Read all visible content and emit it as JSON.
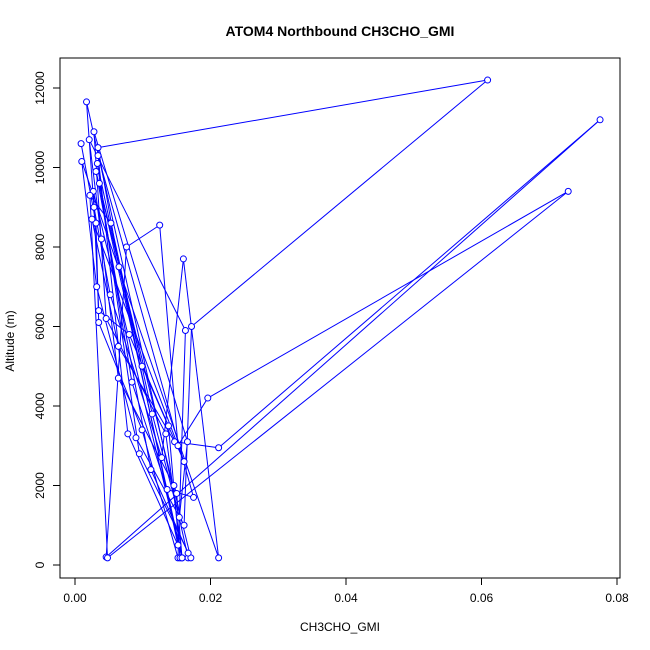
{
  "chart_data": {
    "type": "line",
    "title": "ATOM4 Northbound CH3CHO_GMI",
    "xlabel": "CH3CHO_GMI",
    "ylabel": "Altitude (m)",
    "xlim": [
      0,
      0.08
    ],
    "ylim": [
      0,
      12000
    ],
    "x_ticks": [
      0.0,
      0.02,
      0.04,
      0.06,
      0.08
    ],
    "x_tick_labels": [
      "0.00",
      "0.02",
      "0.04",
      "0.06",
      "0.08"
    ],
    "y_ticks": [
      0,
      2000,
      4000,
      6000,
      8000,
      10000,
      12000
    ],
    "y_tick_labels": [
      "0",
      "2000",
      "4000",
      "6000",
      "8000",
      "10000",
      "12000"
    ],
    "grid": false,
    "series": [
      {
        "color": "#0000ff",
        "marker": "open-circle",
        "x": [
          0.0009,
          0.0031,
          0.0035,
          0.0099,
          0.0152,
          0.0163,
          0.0021,
          0.0039,
          0.0064,
          0.0146,
          0.015,
          0.0158,
          0.0027,
          0.0035,
          0.008,
          0.0138,
          0.0155,
          0.0167,
          0.0017,
          0.0028,
          0.0052,
          0.0128,
          0.016,
          0.0212,
          0.001,
          0.0032,
          0.009,
          0.0161,
          0.0172,
          0.0609,
          0.0034,
          0.0065,
          0.0099,
          0.0161,
          0.0025,
          0.0064,
          0.0147,
          0.0212,
          0.0775,
          0.0046,
          0.0076,
          0.0125,
          0.0152,
          0.0196,
          0.0728,
          0.0048,
          0.0022,
          0.0053,
          0.0114,
          0.0154,
          0.0166,
          0.0028,
          0.0046,
          0.0134,
          0.0158,
          0.0036,
          0.0084,
          0.0136,
          0.0175,
          0.0034,
          0.0078,
          0.0152,
          0.0033,
          0.0095,
          0.0171,
          0.0031,
          0.0112,
          0.0167
        ],
        "y": [
          10600,
          8600,
          6100,
          3400,
          180,
          5900,
          10700,
          8200,
          4700,
          2000,
          1800,
          180,
          9400,
          6400,
          5800,
          3500,
          180,
          180,
          11650,
          9000,
          6800,
          2700,
          7700,
          180,
          10150,
          7000,
          3200,
          1000,
          6000,
          12200,
          10500,
          7500,
          5000,
          2600,
          8700,
          5500,
          3100,
          2950,
          11200,
          200,
          8000,
          8550,
          3000,
          4200,
          9400,
          180,
          9300,
          8600,
          3800,
          1200,
          3100,
          10900,
          6200,
          3300,
          180,
          9600,
          4600,
          1900,
          1700,
          10300,
          3300,
          500,
          10100,
          2800,
          180,
          9900,
          2400,
          300
        ]
      }
    ]
  }
}
